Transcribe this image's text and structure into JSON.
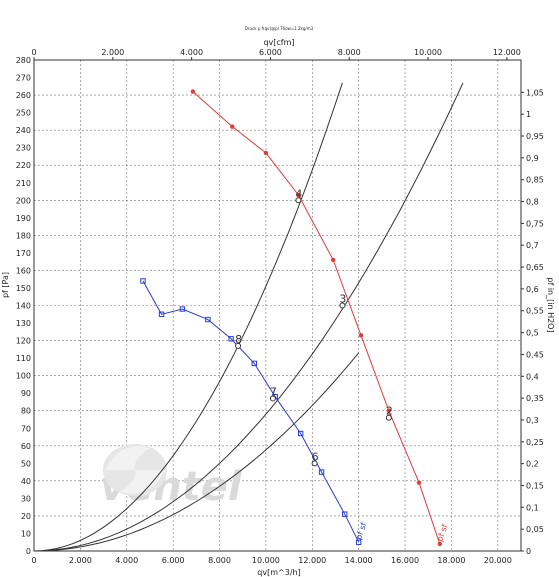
{
  "chart_data": {
    "type": "line",
    "title": "Druck p f(qv)@pl 76ow=1.2kg/m3",
    "xlabel": "qv[m^3/h]",
    "x2label": "qv[cfm]",
    "ylabel": "pf [Pa]",
    "y2label": "pf in_[in H2O]",
    "xlim": [
      0,
      21000
    ],
    "x2lim": [
      0,
      12359
    ],
    "ylim": [
      0,
      280
    ],
    "y2lim": [
      0,
      1.124
    ],
    "x_ticks": [
      "0",
      "2.000",
      "4.000",
      "6.000",
      "8.000",
      "10.000",
      "12.000",
      "14.000",
      "16.000",
      "18.000",
      "20.000"
    ],
    "x2_ticks": [
      "0",
      "2.000",
      "4.000",
      "6.000",
      "8.000",
      "10.000",
      "12.000"
    ],
    "y_ticks": [
      "0",
      "10",
      "20",
      "30",
      "40",
      "50",
      "60",
      "70",
      "80",
      "90",
      "100",
      "110",
      "120",
      "130",
      "140",
      "150",
      "160",
      "170",
      "180",
      "190",
      "200",
      "210",
      "220",
      "230",
      "240",
      "250",
      "260",
      "270",
      "280"
    ],
    "y2_ticks": [
      "0",
      "0,05",
      "0,1",
      "0,15",
      "0,2",
      "0,25",
      "0,3",
      "0,35",
      "0,4",
      "0,45",
      "0,5",
      "0,55",
      "0,6",
      "0,65",
      "0,7",
      "0,75",
      "0,8",
      "0,85",
      "0,9",
      "0,95",
      "1",
      "1,05"
    ],
    "grid": true,
    "series": [
      {
        "name": "pf sf",
        "color": "#e23b3b",
        "marker": "circle",
        "x": [
          6850,
          8550,
          10000,
          11400,
          12900,
          14100,
          15300,
          16600,
          17500
        ],
        "y": [
          262,
          242,
          227,
          203,
          166,
          123,
          80,
          39,
          4
        ]
      },
      {
        "name": "pf sf",
        "color": "#2b3bd2",
        "marker": "square",
        "x": [
          4700,
          5500,
          6400,
          7500,
          8500,
          9500,
          10400,
          11500,
          12400,
          13400,
          14000
        ],
        "y": [
          154,
          135,
          138,
          132,
          121,
          107,
          88,
          67,
          45,
          21,
          5
        ]
      }
    ],
    "system_curves": [
      {
        "x": [
          0,
          14000
        ],
        "y": [
          0,
          113
        ]
      },
      {
        "x": [
          0,
          18500
        ],
        "y": [
          0,
          267
        ]
      },
      {
        "x": [
          0,
          13300
        ],
        "y": [
          0,
          267
        ]
      }
    ],
    "operating_points": [
      {
        "label": "2",
        "x": 15300,
        "y": 76
      },
      {
        "label": "3",
        "x": 13300,
        "y": 140
      },
      {
        "label": "4",
        "x": 11400,
        "y": 200
      },
      {
        "label": "6",
        "x": 12100,
        "y": 50
      },
      {
        "label": "7",
        "x": 10300,
        "y": 87
      },
      {
        "label": "8",
        "x": 8800,
        "y": 117
      }
    ],
    "watermark": "ventel"
  }
}
